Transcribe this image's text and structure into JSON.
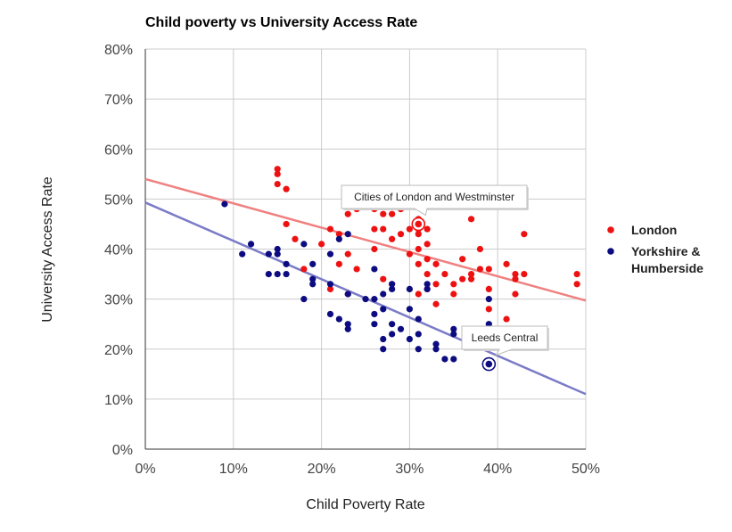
{
  "chart_data": {
    "type": "scatter",
    "title": "Child poverty vs University Access Rate",
    "xlabel": "Child Poverty Rate",
    "ylabel": "University Access Rate",
    "xlim": [
      0,
      0.5
    ],
    "ylim": [
      0,
      0.8
    ],
    "x_ticks": [
      "0%",
      "10%",
      "20%",
      "30%",
      "40%",
      "50%"
    ],
    "y_ticks": [
      "0%",
      "10%",
      "20%",
      "30%",
      "40%",
      "50%",
      "60%",
      "70%",
      "80%"
    ],
    "grid": true,
    "legend_position": "right",
    "series": [
      {
        "name": "London",
        "color": "#ee1111",
        "trendline": {
          "color": "#f08080",
          "start": [
            0,
            0.54
          ],
          "end": [
            0.5,
            0.297
          ]
        },
        "points": [
          [
            0.15,
            0.56
          ],
          [
            0.15,
            0.55
          ],
          [
            0.15,
            0.53
          ],
          [
            0.16,
            0.52
          ],
          [
            0.16,
            0.45
          ],
          [
            0.17,
            0.42
          ],
          [
            0.18,
            0.36
          ],
          [
            0.2,
            0.41
          ],
          [
            0.21,
            0.44
          ],
          [
            0.21,
            0.32
          ],
          [
            0.22,
            0.43
          ],
          [
            0.22,
            0.37
          ],
          [
            0.23,
            0.47
          ],
          [
            0.23,
            0.39
          ],
          [
            0.23,
            0.31
          ],
          [
            0.24,
            0.48
          ],
          [
            0.24,
            0.36
          ],
          [
            0.26,
            0.48
          ],
          [
            0.26,
            0.44
          ],
          [
            0.26,
            0.4
          ],
          [
            0.27,
            0.47
          ],
          [
            0.27,
            0.44
          ],
          [
            0.27,
            0.34
          ],
          [
            0.28,
            0.47
          ],
          [
            0.28,
            0.42
          ],
          [
            0.28,
            0.33
          ],
          [
            0.29,
            0.48
          ],
          [
            0.29,
            0.43
          ],
          [
            0.3,
            0.44
          ],
          [
            0.3,
            0.39
          ],
          [
            0.31,
            0.46
          ],
          [
            0.31,
            0.44
          ],
          [
            0.31,
            0.43
          ],
          [
            0.31,
            0.4
          ],
          [
            0.31,
            0.37
          ],
          [
            0.31,
            0.31
          ],
          [
            0.32,
            0.44
          ],
          [
            0.32,
            0.41
          ],
          [
            0.32,
            0.38
          ],
          [
            0.32,
            0.35
          ],
          [
            0.32,
            0.32
          ],
          [
            0.33,
            0.37
          ],
          [
            0.33,
            0.33
          ],
          [
            0.33,
            0.29
          ],
          [
            0.34,
            0.35
          ],
          [
            0.35,
            0.33
          ],
          [
            0.35,
            0.31
          ],
          [
            0.36,
            0.38
          ],
          [
            0.36,
            0.34
          ],
          [
            0.37,
            0.46
          ],
          [
            0.37,
            0.35
          ],
          [
            0.37,
            0.34
          ],
          [
            0.38,
            0.4
          ],
          [
            0.38,
            0.36
          ],
          [
            0.39,
            0.36
          ],
          [
            0.39,
            0.32
          ],
          [
            0.39,
            0.28
          ],
          [
            0.41,
            0.37
          ],
          [
            0.41,
            0.26
          ],
          [
            0.42,
            0.35
          ],
          [
            0.42,
            0.34
          ],
          [
            0.42,
            0.31
          ],
          [
            0.43,
            0.43
          ],
          [
            0.43,
            0.35
          ],
          [
            0.49,
            0.35
          ],
          [
            0.49,
            0.33
          ]
        ]
      },
      {
        "name": "Yorkshire & Humberside",
        "legend_lines": [
          "Yorkshire &",
          "Humberside"
        ],
        "color": "#0c0c80",
        "trendline": {
          "color": "#7b7bc8",
          "start": [
            0,
            0.493
          ],
          "end": [
            0.5,
            0.11
          ]
        },
        "points": [
          [
            0.09,
            0.49
          ],
          [
            0.11,
            0.39
          ],
          [
            0.12,
            0.41
          ],
          [
            0.14,
            0.39
          ],
          [
            0.14,
            0.35
          ],
          [
            0.15,
            0.4
          ],
          [
            0.15,
            0.39
          ],
          [
            0.15,
            0.35
          ],
          [
            0.16,
            0.37
          ],
          [
            0.16,
            0.35
          ],
          [
            0.18,
            0.41
          ],
          [
            0.18,
            0.3
          ],
          [
            0.19,
            0.37
          ],
          [
            0.19,
            0.34
          ],
          [
            0.19,
            0.33
          ],
          [
            0.21,
            0.39
          ],
          [
            0.21,
            0.33
          ],
          [
            0.21,
            0.27
          ],
          [
            0.22,
            0.42
          ],
          [
            0.22,
            0.26
          ],
          [
            0.23,
            0.43
          ],
          [
            0.23,
            0.31
          ],
          [
            0.23,
            0.25
          ],
          [
            0.23,
            0.24
          ],
          [
            0.25,
            0.3
          ],
          [
            0.26,
            0.36
          ],
          [
            0.26,
            0.3
          ],
          [
            0.26,
            0.27
          ],
          [
            0.26,
            0.25
          ],
          [
            0.27,
            0.31
          ],
          [
            0.27,
            0.28
          ],
          [
            0.27,
            0.22
          ],
          [
            0.27,
            0.2
          ],
          [
            0.28,
            0.33
          ],
          [
            0.28,
            0.32
          ],
          [
            0.28,
            0.25
          ],
          [
            0.28,
            0.23
          ],
          [
            0.29,
            0.24
          ],
          [
            0.3,
            0.32
          ],
          [
            0.3,
            0.28
          ],
          [
            0.3,
            0.22
          ],
          [
            0.31,
            0.26
          ],
          [
            0.31,
            0.23
          ],
          [
            0.31,
            0.2
          ],
          [
            0.32,
            0.33
          ],
          [
            0.32,
            0.32
          ],
          [
            0.33,
            0.21
          ],
          [
            0.33,
            0.2
          ],
          [
            0.34,
            0.18
          ],
          [
            0.35,
            0.24
          ],
          [
            0.35,
            0.23
          ],
          [
            0.35,
            0.18
          ],
          [
            0.39,
            0.3
          ],
          [
            0.39,
            0.25
          ]
        ]
      }
    ],
    "annotations": [
      {
        "text": "Cities of London and Westminster",
        "x": 0.31,
        "y": 0.45,
        "series": 0
      },
      {
        "text": "Leeds Central",
        "x": 0.39,
        "y": 0.17,
        "series": 1
      }
    ]
  }
}
